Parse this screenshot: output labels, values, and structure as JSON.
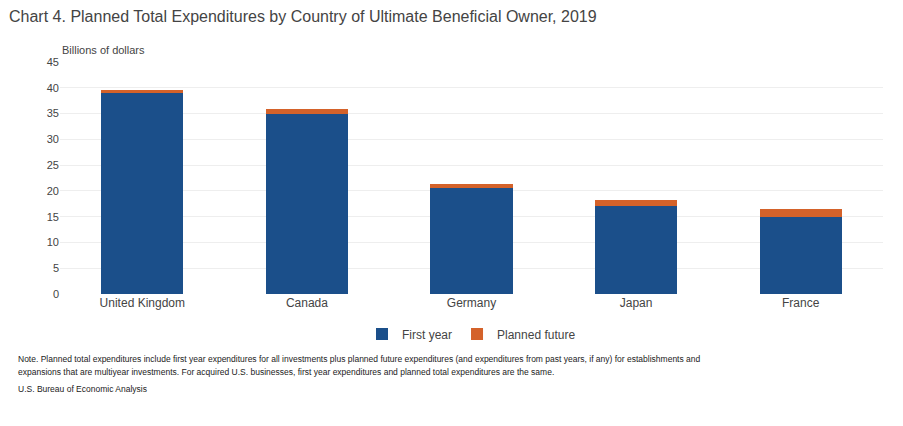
{
  "chart_data": {
    "type": "bar",
    "title": "Chart 4. Planned Total Expenditures by Country of Ultimate Beneficial Owner, 2019",
    "ylabel": "Billions of dollars",
    "annotations": [
      "Note. Planned total expenditures include first year expenditures for all investments plus planned future expenditures (and expenditures from past years, if any) for establishments and",
      "expansions that are multiyear investments. For acquired U.S. businesses, first year expenditures and planned total expenditures are the same.",
      "U.S. Bureau of Economic Analysis"
    ],
    "categories": [
      "United Kingdom",
      "Canada",
      "Germany",
      "Japan",
      "France"
    ],
    "series": [
      {
        "name": "First year",
        "color": "#1B4F8A",
        "values": [
          39.0,
          35.0,
          20.5,
          17.0,
          15.0
        ]
      },
      {
        "name": "Planned future",
        "color": "#D4622A",
        "values": [
          0.5,
          0.8,
          0.8,
          1.3,
          1.5
        ]
      }
    ],
    "stacked": true,
    "ylim": [
      0,
      45
    ],
    "yticks": [
      0,
      5,
      10,
      15,
      20,
      25,
      30,
      35,
      40,
      45
    ],
    "grid": true,
    "legend": "bottom"
  }
}
